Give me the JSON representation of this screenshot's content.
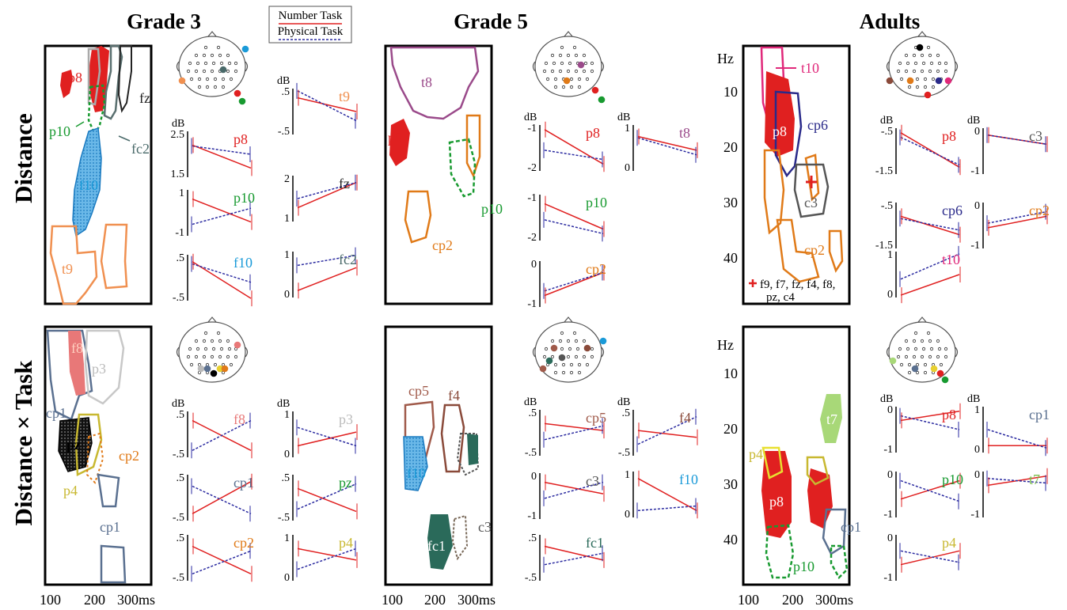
{
  "colors": {
    "number": "#e02020",
    "physical": "#2a2aa0"
  },
  "headers": {
    "g3": "Grade 3",
    "g5": "Grade 5",
    "adults": "Adults"
  },
  "row_labels": {
    "distance": "Distance",
    "dxt": "Distance × Task"
  },
  "legend": {
    "number": "Number Task",
    "physical": "Physical Task"
  },
  "axis": {
    "x_ticks": [
      "100",
      "200",
      "300ms"
    ],
    "y_unit": "Hz",
    "y_ticks": [
      "10",
      "20",
      "30",
      "40"
    ],
    "db": "dB"
  },
  "note": {
    "line1": "f9, f7, fz, f4, f8,",
    "line2": "pz, c4"
  },
  "panels": [
    {
      "id": "g3d",
      "cols": [
        [
          {
            "label": "p8",
            "color": "#e02020",
            "ticks": [
              "2.5",
              "1.5"
            ],
            "num": [
              0.3,
              0.8
            ],
            "phy": [
              0.32,
              0.5
            ]
          },
          {
            "label": "p10",
            "color": "#189a30",
            "ticks": [
              "1",
              "-1"
            ],
            "num": [
              0.2,
              0.7
            ],
            "phy": [
              0.75,
              0.4
            ]
          },
          {
            "label": "f10",
            "color": "#1a9ad8",
            "ticks": [
              ".5",
              "-.5"
            ],
            "num": [
              0.15,
              0.95
            ],
            "phy": [
              0.2,
              0.6
            ]
          }
        ],
        [
          {
            "label": "t9",
            "color": "#f09050",
            "ticks": [
              ".5",
              "-.5"
            ],
            "num": [
              0.2,
              0.5
            ],
            "phy": [
              0.05,
              0.7
            ]
          },
          {
            "label": "fz",
            "color": "#222222",
            "ticks": [
              "2",
              "1"
            ],
            "num": [
              0.7,
              0.15
            ],
            "phy": [
              0.5,
              0.15
            ]
          },
          {
            "label": "fc2",
            "color": "#4a6a6a",
            "ticks": [
              "1",
              "0"
            ],
            "num": [
              0.85,
              0.35
            ],
            "phy": [
              0.3,
              0.08
            ]
          }
        ]
      ]
    },
    {
      "id": "g5d",
      "cols": [
        [
          {
            "label": "p8",
            "color": "#e02020",
            "ticks": [
              "-1",
              "-2"
            ],
            "num": [
              0.1,
              0.85
            ],
            "phy": [
              0.55,
              0.75
            ]
          },
          {
            "label": "p10",
            "color": "#189a30",
            "ticks": [
              "-1",
              "-2"
            ],
            "num": [
              0.2,
              0.75
            ],
            "phy": [
              0.55,
              0.85
            ]
          },
          {
            "label": "cp2",
            "color": "#e07a18",
            "ticks": [
              "0",
              "-1"
            ],
            "num": [
              0.75,
              0.25
            ],
            "phy": [
              0.65,
              0.25
            ]
          }
        ],
        [
          {
            "label": "t8",
            "color": "#9a4a8a",
            "ticks": [
              "1",
              "0"
            ],
            "num": [
              0.25,
              0.55
            ],
            "phy": [
              0.28,
              0.65
            ]
          }
        ]
      ]
    },
    {
      "id": "ad",
      "cols": [
        [
          {
            "label": "p8",
            "color": "#e02020",
            "ticks": [
              "-.5",
              "-1.5"
            ],
            "num": [
              0.1,
              0.85
            ],
            "phy": [
              0.2,
              0.8
            ]
          },
          {
            "label": "cp6",
            "color": "#2a2a8a",
            "ticks": [
              "-.5",
              "-1.5"
            ],
            "num": [
              0.3,
              0.7
            ],
            "phy": [
              0.35,
              0.6
            ]
          },
          {
            "label": "t10",
            "color": "#e0287a",
            "ticks": [
              "1",
              "0"
            ],
            "num": [
              0.95,
              0.5
            ],
            "phy": [
              0.6,
              0.05
            ]
          }
        ],
        [
          {
            "label": "c3",
            "color": "#555555",
            "ticks": [
              "0",
              "-1"
            ],
            "num": [
              0.15,
              0.35
            ],
            "phy": [
              0.15,
              0.35
            ]
          },
          {
            "label": "cp2",
            "color": "#e07a18",
            "ticks": [
              "0",
              "-1"
            ],
            "num": [
              0.55,
              0.3
            ],
            "phy": [
              0.45,
              0.2
            ]
          }
        ]
      ]
    },
    {
      "id": "g3x",
      "cols": [
        [
          {
            "label": "f8",
            "color": "#e87878",
            "ticks": [
              ".5",
              "-.5"
            ],
            "num": [
              0.2,
              0.85
            ],
            "phy": [
              0.85,
              0.2
            ]
          },
          {
            "label": "cp1",
            "color": "#5a7090",
            "ticks": [
              ".5",
              "-.5"
            ],
            "num": [
              0.85,
              0.15
            ],
            "phy": [
              0.25,
              0.85
            ]
          },
          {
            "label": "cp2",
            "color": "#e07a18",
            "ticks": [
              ".5",
              "-.5"
            ],
            "num": [
              0.25,
              0.85
            ],
            "phy": [
              0.85,
              0.35
            ]
          }
        ],
        [
          {
            "label": "p3",
            "color": "#bbbbbb",
            "ticks": [
              "1",
              "0"
            ],
            "num": [
              0.75,
              0.45
            ],
            "phy": [
              0.35,
              0.75
            ]
          },
          {
            "label": "pz",
            "color": "#189a30",
            "ticks": [
              ".5",
              "-.5"
            ],
            "num": [
              0.3,
              0.8
            ],
            "phy": [
              0.75,
              0.2
            ]
          },
          {
            "label": "p4",
            "color": "#c8b830",
            "ticks": [
              "1",
              "0"
            ],
            "num": [
              0.3,
              0.55
            ],
            "phy": [
              0.75,
              0.3
            ]
          }
        ]
      ]
    },
    {
      "id": "g5x",
      "cols": [
        [
          {
            "label": "cp5",
            "color": "#a05a4a",
            "ticks": [
              ".5",
              "-.5"
            ],
            "num": [
              0.3,
              0.45
            ],
            "phy": [
              0.65,
              0.35
            ]
          },
          {
            "label": "c3",
            "color": "#555555",
            "ticks": [
              "0",
              "-1"
            ],
            "num": [
              0.2,
              0.45
            ],
            "phy": [
              0.55,
              0.2
            ]
          },
          {
            "label": "fc1",
            "color": "#2a6a5a",
            "ticks": [
              ".5",
              "-.5"
            ],
            "num": [
              0.25,
              0.55
            ],
            "phy": [
              0.65,
              0.4
            ]
          }
        ],
        [
          {
            "label": "f4",
            "color": "#8a4a3a",
            "ticks": [
              ".5",
              "-.5"
            ],
            "num": [
              0.45,
              0.6
            ],
            "phy": [
              0.75,
              0.15
            ]
          },
          {
            "label": "f10",
            "color": "#1a9ad8",
            "ticks": [
              "1",
              "0"
            ],
            "num": [
              0.15,
              0.85
            ],
            "phy": [
              0.85,
              0.75
            ]
          }
        ]
      ]
    },
    {
      "id": "adx",
      "cols": [
        [
          {
            "label": "p8",
            "color": "#e02020",
            "ticks": [
              "0",
              "-1"
            ],
            "num": [
              0.3,
              0.1
            ],
            "phy": [
              0.2,
              0.5
            ]
          },
          {
            "label": "p10",
            "color": "#189a30",
            "ticks": [
              "0",
              "-1"
            ],
            "num": [
              0.6,
              0.2
            ],
            "phy": [
              0.2,
              0.65
            ]
          },
          {
            "label": "p4",
            "color": "#c8b830",
            "ticks": [
              "0",
              "-1"
            ],
            "num": [
              0.65,
              0.35
            ],
            "phy": [
              0.35,
              0.6
            ]
          }
        ],
        [
          {
            "label": "cp1",
            "color": "#5a7090",
            "ticks": [
              "1",
              "0"
            ],
            "num": [
              0.85,
              0.85
            ],
            "phy": [
              0.5,
              0.9
            ]
          },
          {
            "label": "t7",
            "color": "#7abf4a",
            "ticks": [
              "0",
              "-1"
            ],
            "num": [
              0.3,
              0.1
            ],
            "phy": [
              0.15,
              0.25
            ]
          }
        ]
      ]
    }
  ],
  "heatmap_labels": {
    "g3d": [
      {
        "t": "p8",
        "c": "#e02020"
      },
      {
        "t": "fz",
        "c": "#222222"
      },
      {
        "t": "p10",
        "c": "#189a30"
      },
      {
        "t": "fc2",
        "c": "#4a6a6a"
      },
      {
        "t": "f10",
        "c": "#1a9ad8"
      },
      {
        "t": "t9",
        "c": "#f09050"
      }
    ],
    "g5d": [
      {
        "t": "t8",
        "c": "#9a4a8a"
      },
      {
        "t": "p8",
        "c": "#e02020"
      },
      {
        "t": "p10",
        "c": "#189a30"
      },
      {
        "t": "cp2",
        "c": "#e07a18"
      }
    ],
    "ad": [
      {
        "t": "t10",
        "c": "#e0287a"
      },
      {
        "t": "cp6",
        "c": "#2a2a8a"
      },
      {
        "t": "p8",
        "c": "#ffffff"
      },
      {
        "t": "c3",
        "c": "#555555"
      },
      {
        "t": "cp2",
        "c": "#e07a18"
      }
    ],
    "g3x": [
      {
        "t": "f8",
        "c": "#ffd0c0"
      },
      {
        "t": "p3",
        "c": "#bbbbbb"
      },
      {
        "t": "cp1",
        "c": "#5a7090"
      },
      {
        "t": "pz",
        "c": "#000000"
      },
      {
        "t": "cp2",
        "c": "#e07a18"
      },
      {
        "t": "p4",
        "c": "#c8b830"
      },
      {
        "t": "cp1",
        "c": "#5a7090"
      }
    ],
    "g5x": [
      {
        "t": "cp5",
        "c": "#a05a4a"
      },
      {
        "t": "f4",
        "c": "#8a4a3a"
      },
      {
        "t": "f10",
        "c": "#1a9ad8"
      },
      {
        "t": "fc1",
        "c": "#ffffff"
      },
      {
        "t": "c3",
        "c": "#555555"
      }
    ],
    "adx": [
      {
        "t": "t7",
        "c": "#ffffff"
      },
      {
        "t": "p4",
        "c": "#c8b830"
      },
      {
        "t": "p8",
        "c": "#ffffff"
      },
      {
        "t": "cp1",
        "c": "#5a7090"
      },
      {
        "t": "p10",
        "c": "#189a30"
      }
    ]
  }
}
